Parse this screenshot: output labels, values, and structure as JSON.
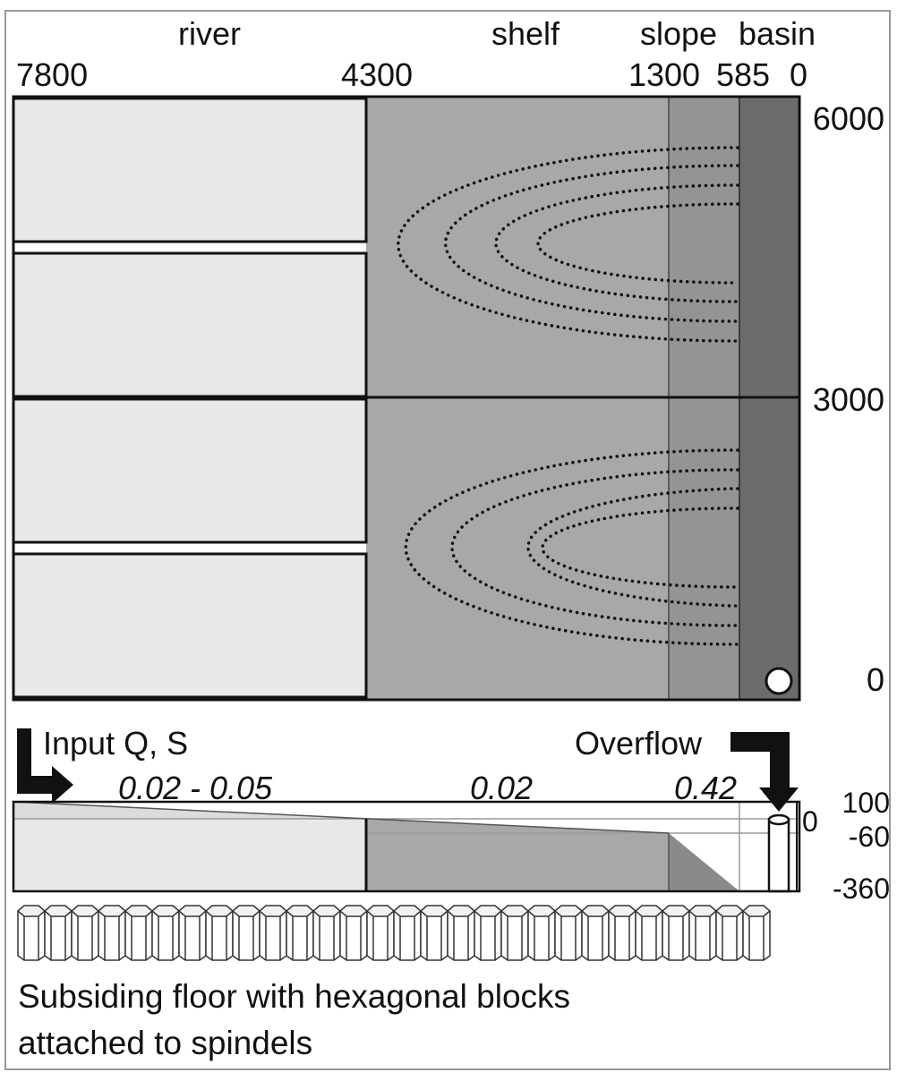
{
  "zones": {
    "river": "river",
    "shelf": "shelf",
    "slope": "slope",
    "basin": "basin"
  },
  "distance_ticks": [
    "7800",
    "4300",
    "1300",
    "585",
    "0"
  ],
  "width_ticks": [
    "6000",
    "3000",
    "0"
  ],
  "input_label": "Input Q, S",
  "overflow_label": "Overflow",
  "gradients": [
    "0.02 - 0.05",
    "0.02",
    "0.42"
  ],
  "elevation_ticks": [
    "100",
    "0",
    "-60",
    "-360"
  ],
  "caption": {
    "line1": "Subsiding floor with hexagonal blocks",
    "line2": "attached to spindels"
  },
  "colors": {
    "river": "#e8e8ea",
    "shelf": "#a8a8aa",
    "slope": "#949496",
    "basin": "#6c6c6e",
    "outline": "#111111",
    "dotted_contours": "#111111"
  },
  "icons": {
    "input_arrow": "arrow-down-right-icon",
    "overflow_arrow": "arrow-right-down-icon",
    "outlet": "circle-outlet-icon",
    "overflow_pipe": "cylinder-icon",
    "hex_block": "hexagonal-prism-icon"
  }
}
